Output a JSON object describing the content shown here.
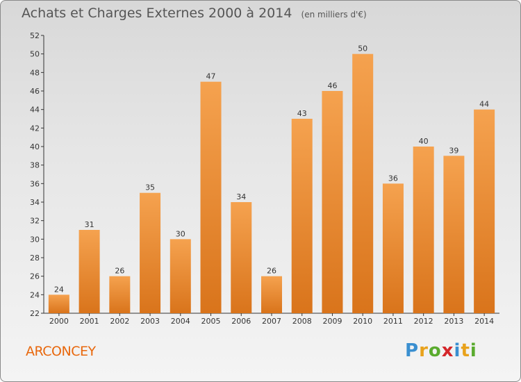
{
  "title": "Achats et Charges Externes 2000 à 2014",
  "unit": "(en milliers d'€)",
  "commune": "ARCONCEY",
  "logo": {
    "letters": [
      "P",
      "r",
      "o",
      "x",
      "i",
      "t",
      "i"
    ]
  },
  "colors": {
    "bar_top": "#f5a24f",
    "bar_bottom": "#d9741b",
    "commune_text": "#e8670c"
  },
  "chart_data": {
    "type": "bar",
    "categories": [
      "2000",
      "2001",
      "2002",
      "2003",
      "2004",
      "2005",
      "2006",
      "2007",
      "2008",
      "2009",
      "2010",
      "2011",
      "2012",
      "2013",
      "2014"
    ],
    "values": [
      24,
      31,
      26,
      35,
      30,
      47,
      34,
      26,
      43,
      46,
      50,
      36,
      40,
      39,
      44
    ],
    "ylim": [
      22,
      52
    ],
    "yticks": [
      22,
      24,
      26,
      28,
      30,
      32,
      34,
      36,
      38,
      40,
      42,
      44,
      46,
      48,
      50,
      52
    ],
    "grid": false,
    "data_labels": true
  }
}
